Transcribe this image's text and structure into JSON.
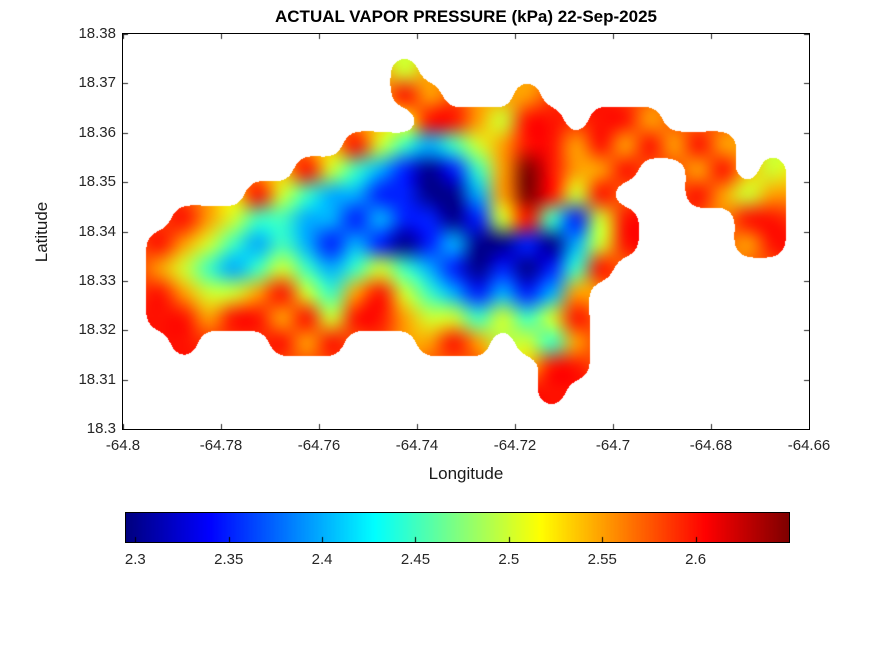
{
  "colors": {
    "background": "#ffffff",
    "axis_text": "#262626",
    "box": "#000000"
  },
  "axes": {
    "x": {
      "min": -64.8,
      "max": -64.66,
      "tick_labels": [
        "-64.8",
        "-64.78",
        "-64.76",
        "-64.74",
        "-64.72",
        "-64.7",
        "-64.68",
        "-64.66"
      ],
      "tick_values": [
        -64.8,
        -64.78,
        -64.76,
        -64.74,
        -64.72,
        -64.7,
        -64.68,
        -64.66
      ]
    },
    "y": {
      "min": 18.3,
      "max": 18.38,
      "tick_labels": [
        "18.3",
        "18.31",
        "18.32",
        "18.33",
        "18.34",
        "18.35",
        "18.36",
        "18.37",
        "18.38"
      ],
      "tick_values": [
        18.3,
        18.31,
        18.32,
        18.33,
        18.34,
        18.35,
        18.36,
        18.37,
        18.38
      ]
    }
  },
  "colorbar": {
    "orientation": "horizontal",
    "colormap": "jet",
    "tick_labels": [
      "2.3",
      "2.35",
      "2.4",
      "2.45",
      "2.5",
      "2.55",
      "2.6"
    ],
    "tick_values": [
      2.3,
      2.35,
      2.4,
      2.45,
      2.5,
      2.55,
      2.6
    ]
  },
  "chart_data": {
    "type": "heatmap",
    "title": "ACTUAL VAPOR PRESSURE (kPa) 22-Sep-2025",
    "xlabel": "Longitude",
    "ylabel": "Latitude",
    "units": "kPa",
    "colormap": "jet",
    "xlim": [
      -64.8,
      -64.66
    ],
    "ylim": [
      18.3,
      18.38
    ],
    "value_range": [
      2.295,
      2.65
    ],
    "grid": {
      "nrows": 16,
      "ncols": 28,
      "lon_start": -64.8,
      "lat_start": 18.38,
      "cell_size_deg": 0.005,
      "order": "rows north to south, columns west to east; null = water / no data",
      "values": [
        [
          null,
          null,
          null,
          null,
          null,
          null,
          null,
          null,
          null,
          null,
          null,
          null,
          null,
          null,
          null,
          null,
          null,
          null,
          null,
          null,
          null,
          null,
          null,
          null,
          null,
          null,
          null,
          null
        ],
        [
          null,
          null,
          null,
          null,
          null,
          null,
          null,
          null,
          null,
          null,
          null,
          2.5,
          null,
          null,
          null,
          null,
          null,
          null,
          null,
          null,
          null,
          null,
          null,
          null,
          null,
          null,
          null,
          null
        ],
        [
          null,
          null,
          null,
          null,
          null,
          null,
          null,
          null,
          null,
          null,
          null,
          2.6,
          2.55,
          null,
          null,
          null,
          2.55,
          null,
          null,
          null,
          null,
          null,
          null,
          null,
          null,
          null,
          null,
          null
        ],
        [
          null,
          null,
          null,
          null,
          null,
          null,
          null,
          null,
          null,
          null,
          null,
          null,
          2.6,
          2.6,
          2.55,
          2.5,
          2.6,
          2.6,
          null,
          2.6,
          2.6,
          2.55,
          null,
          null,
          null,
          null,
          null,
          null
        ],
        [
          null,
          null,
          null,
          null,
          null,
          null,
          null,
          null,
          null,
          2.6,
          2.5,
          2.45,
          2.4,
          2.45,
          2.5,
          2.55,
          2.6,
          2.6,
          2.55,
          2.6,
          2.55,
          2.6,
          2.55,
          2.6,
          2.55,
          null,
          null,
          null
        ],
        [
          null,
          null,
          null,
          null,
          null,
          null,
          null,
          2.6,
          2.5,
          2.45,
          2.4,
          2.35,
          2.3,
          2.35,
          2.45,
          2.55,
          2.65,
          2.6,
          2.55,
          2.55,
          2.6,
          null,
          null,
          2.55,
          2.6,
          null,
          2.5,
          null
        ],
        [
          null,
          null,
          null,
          null,
          null,
          2.6,
          2.5,
          2.45,
          2.4,
          2.4,
          2.35,
          2.35,
          2.3,
          2.3,
          2.4,
          2.55,
          2.65,
          2.6,
          2.5,
          2.6,
          null,
          null,
          null,
          2.6,
          2.55,
          2.5,
          2.55,
          null
        ],
        [
          null,
          null,
          2.6,
          2.55,
          2.5,
          2.45,
          2.45,
          2.4,
          2.4,
          2.35,
          2.4,
          2.35,
          2.35,
          2.3,
          2.35,
          2.5,
          2.6,
          2.45,
          2.35,
          2.5,
          2.6,
          null,
          null,
          null,
          null,
          2.6,
          2.6,
          null
        ],
        [
          null,
          2.6,
          2.55,
          2.5,
          2.45,
          2.4,
          2.45,
          2.4,
          2.35,
          2.4,
          2.35,
          2.3,
          2.35,
          2.4,
          2.3,
          2.3,
          2.35,
          2.3,
          2.4,
          2.5,
          2.6,
          null,
          null,
          null,
          null,
          2.55,
          2.6,
          null
        ],
        [
          null,
          2.55,
          2.5,
          2.45,
          2.4,
          2.45,
          2.5,
          2.45,
          2.4,
          2.45,
          2.5,
          2.45,
          2.4,
          2.35,
          2.3,
          2.35,
          2.3,
          2.35,
          2.45,
          2.6,
          null,
          null,
          null,
          null,
          null,
          null,
          null,
          null
        ],
        [
          null,
          2.6,
          2.55,
          2.5,
          2.5,
          2.55,
          2.6,
          2.5,
          2.45,
          2.55,
          2.6,
          2.5,
          2.45,
          2.4,
          2.35,
          2.4,
          2.35,
          2.4,
          2.55,
          null,
          null,
          null,
          null,
          null,
          null,
          null,
          null,
          null
        ],
        [
          null,
          2.6,
          2.6,
          2.55,
          2.6,
          2.6,
          2.55,
          2.6,
          2.5,
          2.6,
          2.6,
          2.55,
          2.5,
          2.5,
          2.45,
          2.5,
          2.45,
          2.5,
          2.6,
          null,
          null,
          null,
          null,
          null,
          null,
          null,
          null,
          null
        ],
        [
          null,
          null,
          2.6,
          null,
          null,
          null,
          2.6,
          2.55,
          2.6,
          null,
          null,
          null,
          2.55,
          2.6,
          2.55,
          null,
          2.5,
          2.45,
          2.55,
          null,
          null,
          null,
          null,
          null,
          null,
          null,
          null,
          null
        ],
        [
          null,
          null,
          null,
          null,
          null,
          null,
          null,
          null,
          null,
          null,
          null,
          null,
          null,
          null,
          null,
          null,
          null,
          2.6,
          2.6,
          null,
          null,
          null,
          null,
          null,
          null,
          null,
          null,
          null
        ],
        [
          null,
          null,
          null,
          null,
          null,
          null,
          null,
          null,
          null,
          null,
          null,
          null,
          null,
          null,
          null,
          null,
          null,
          2.6,
          null,
          null,
          null,
          null,
          null,
          null,
          null,
          null,
          null,
          null
        ],
        [
          null,
          null,
          null,
          null,
          null,
          null,
          null,
          null,
          null,
          null,
          null,
          null,
          null,
          null,
          null,
          null,
          null,
          null,
          null,
          null,
          null,
          null,
          null,
          null,
          null,
          null,
          null,
          null
        ]
      ]
    }
  }
}
